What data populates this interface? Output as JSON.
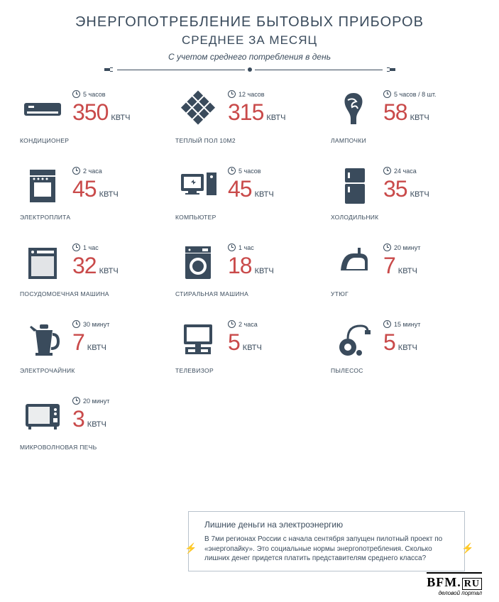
{
  "header": {
    "title": "ЭНЕРГОПОТРЕБЛЕНИЕ БЫТОВЫХ ПРИБОРОВ",
    "subtitle": "СРЕДНЕЕ ЗА МЕСЯЦ",
    "note": "С учетом среднего потребления в день"
  },
  "unit": "КВТЧ",
  "colors": {
    "value": "#c94a4a",
    "icon": "#3a4b5c",
    "text": "#3a4b5c",
    "background": "#ffffff",
    "callout_border": "#b8c2cc",
    "bolt": "#5a9bd4"
  },
  "items": [
    {
      "label": "КОНДИЦИОНЕР",
      "time": "5 часов",
      "value": "350",
      "icon": "ac"
    },
    {
      "label": "ТЕПЛЫЙ ПОЛ 10М2",
      "time": "12 часов",
      "value": "315",
      "icon": "floor"
    },
    {
      "label": "ЛАМПОЧКИ",
      "time": "5 часов / 8 шт.",
      "value": "58",
      "icon": "bulb"
    },
    {
      "label": "ЭЛЕКТРОПЛИТА",
      "time": "2 часа",
      "value": "45",
      "icon": "stove"
    },
    {
      "label": "КОМПЬЮТЕР",
      "time": "5 часов",
      "value": "45",
      "icon": "pc"
    },
    {
      "label": "ХОЛОДИЛЬНИК",
      "time": "24 часа",
      "value": "35",
      "icon": "fridge"
    },
    {
      "label": "ПОСУДОМОЕЧНАЯ МАШИНА",
      "time": "1 час",
      "value": "32",
      "icon": "dish"
    },
    {
      "label": "СТИРАЛЬНАЯ МАШИНА",
      "time": "1 час",
      "value": "18",
      "icon": "wash"
    },
    {
      "label": "УТЮГ",
      "time": "20 минут",
      "value": "7",
      "icon": "iron"
    },
    {
      "label": "ЭЛЕКТРОЧАЙНИК",
      "time": "30 минут",
      "value": "7",
      "icon": "kettle"
    },
    {
      "label": "ТЕЛЕВИЗОР",
      "time": "2 часа",
      "value": "5",
      "icon": "tv"
    },
    {
      "label": "ПЫЛЕСОС",
      "time": "15 минут",
      "value": "5",
      "icon": "vacuum"
    },
    {
      "label": "МИКРОВОЛНОВАЯ ПЕЧЬ",
      "time": "20 минут",
      "value": "3",
      "icon": "micro"
    }
  ],
  "callout": {
    "title": "Лишние деньги на электроэнергию",
    "body": "В 7ми регионах России с начала сентября запущен пилотный проект по «энергопайку». Это социальные нормы энергопотребления. Сколько лишних денег придется платить представителям среднего класса?"
  },
  "footer": {
    "logo_main": "BFM",
    "logo_suffix": "RU",
    "tagline": "деловой портал"
  }
}
